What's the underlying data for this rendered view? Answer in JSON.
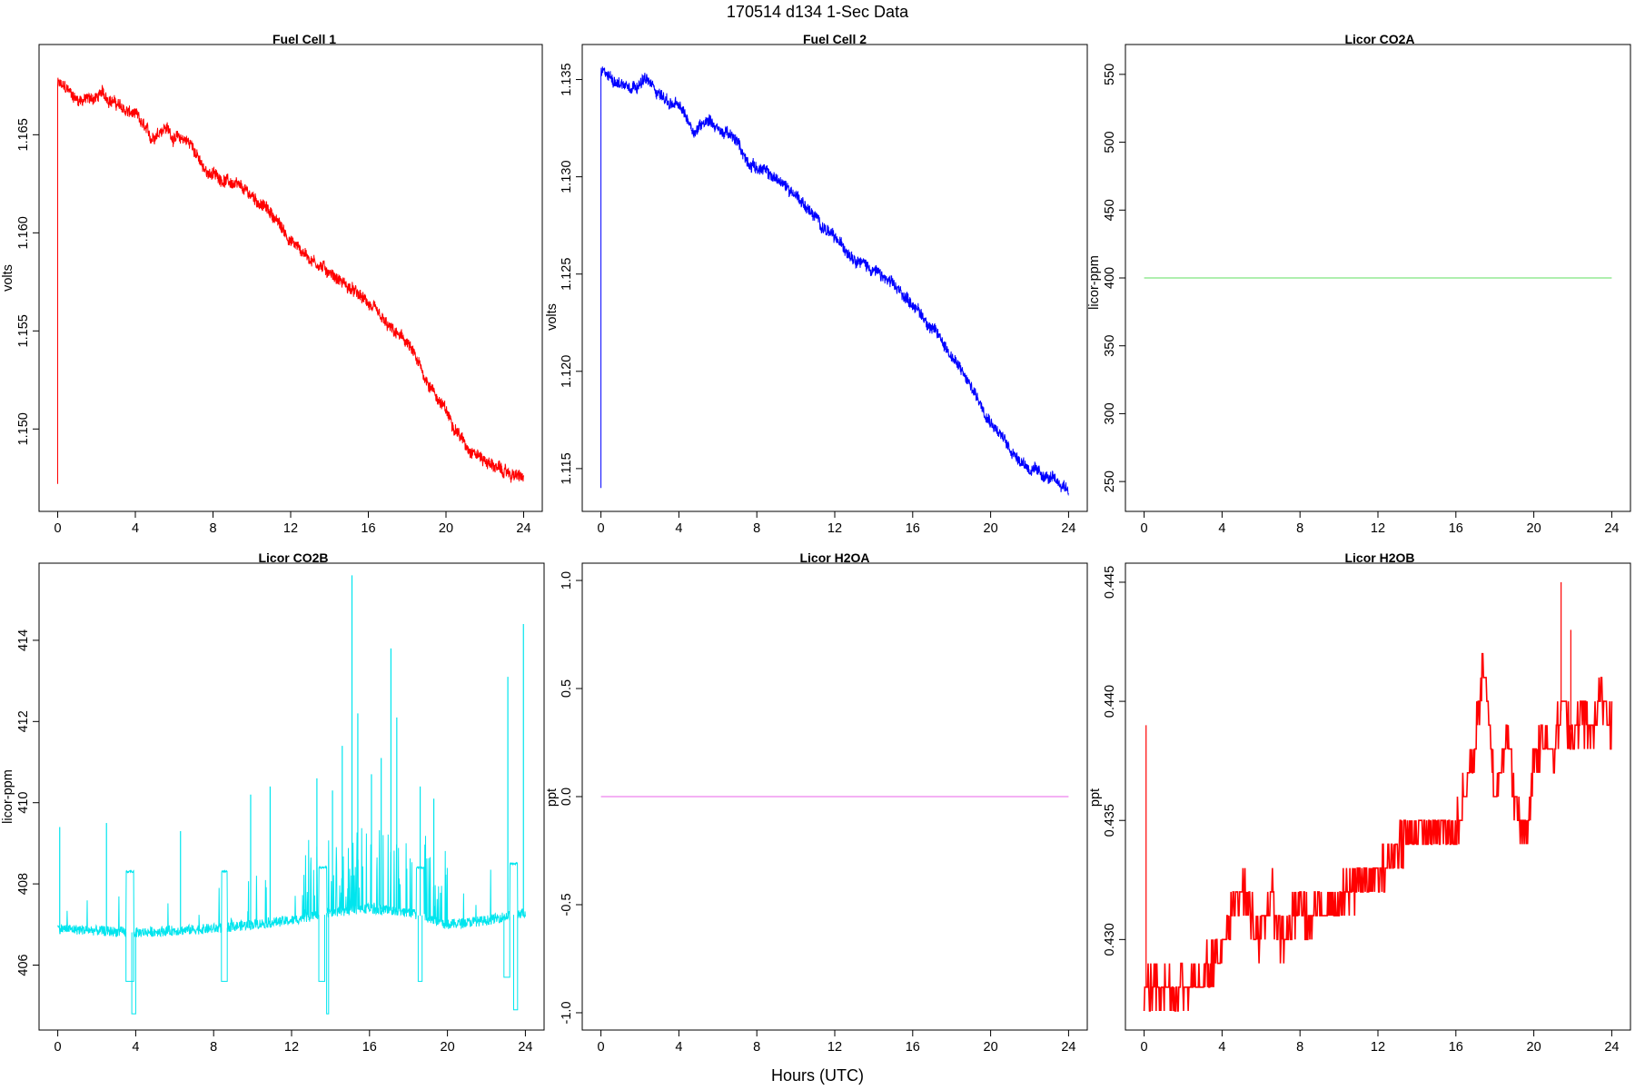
{
  "figure": {
    "title": "170514   d134   1-Sec Data",
    "xlabel": "Hours (UTC)"
  },
  "chart_data": [
    {
      "type": "line",
      "title": "Fuel Cell 1",
      "ylabel": "volts",
      "color": "#ff0000",
      "xlim": [
        -0.96,
        24.96
      ],
      "ylim": [
        1.1458,
        1.1696
      ],
      "xticks": [
        0,
        4,
        8,
        12,
        16,
        20,
        24
      ],
      "yticks": [
        1.15,
        1.155,
        1.16,
        1.165
      ],
      "ytick_labels": [
        "1.150",
        "1.155",
        "1.160",
        "1.165"
      ],
      "noise": 0.00025,
      "spike": [
        0,
        1.1472
      ],
      "x": [
        0,
        0.5,
        1,
        1.5,
        2,
        2.3,
        3,
        3.5,
        4,
        4.5,
        4.8,
        5.3,
        5.6,
        6,
        6.5,
        7,
        7.5,
        8,
        9,
        10,
        11,
        12,
        13,
        14,
        15,
        16,
        17,
        18,
        19,
        20,
        21,
        22,
        23,
        24
      ],
      "y": [
        1.1676,
        1.1673,
        1.1668,
        1.1668,
        1.1669,
        1.1671,
        1.1666,
        1.1662,
        1.166,
        1.1653,
        1.1648,
        1.1653,
        1.1654,
        1.1648,
        1.1648,
        1.1644,
        1.1632,
        1.163,
        1.1625,
        1.1619,
        1.161,
        1.1596,
        1.1587,
        1.158,
        1.1572,
        1.1564,
        1.1552,
        1.1544,
        1.1525,
        1.1509,
        1.1492,
        1.1484,
        1.1478,
        1.1475
      ]
    },
    {
      "type": "line",
      "title": "Fuel Cell 2",
      "ylabel": "volts",
      "color": "#0000ff",
      "xlim": [
        -0.96,
        24.96
      ],
      "ylim": [
        1.1128,
        1.1368
      ],
      "xticks": [
        0,
        4,
        8,
        12,
        16,
        20,
        24
      ],
      "yticks": [
        1.115,
        1.12,
        1.125,
        1.13,
        1.135
      ],
      "ytick_labels": [
        "1.115",
        "1.120",
        "1.125",
        "1.130",
        "1.135"
      ],
      "noise": 0.00025,
      "spike": [
        0,
        1.114
      ],
      "x": [
        0,
        0.5,
        1,
        1.5,
        2,
        2.3,
        3,
        3.5,
        4,
        4.5,
        4.8,
        5.3,
        5.6,
        6,
        6.5,
        7,
        7.5,
        8,
        9,
        10,
        11,
        12,
        13,
        14,
        15,
        16,
        17,
        17.5,
        18,
        19,
        20,
        21,
        22,
        23,
        24
      ],
      "y": [
        1.1354,
        1.1351,
        1.1348,
        1.1347,
        1.1348,
        1.135,
        1.1343,
        1.1338,
        1.1336,
        1.1329,
        1.1323,
        1.1329,
        1.133,
        1.1324,
        1.1322,
        1.1318,
        1.1308,
        1.1305,
        1.1299,
        1.1291,
        1.1279,
        1.1268,
        1.1259,
        1.1252,
        1.1244,
        1.1235,
        1.1222,
        1.1216,
        1.1208,
        1.1192,
        1.1175,
        1.116,
        1.115,
        1.1145,
        1.114
      ]
    },
    {
      "type": "line",
      "title": "Licor CO2A",
      "ylabel": "licor-ppm",
      "color": "#7fe57f",
      "xlim": [
        -0.96,
        24.96
      ],
      "ylim": [
        228,
        572
      ],
      "xticks": [
        0,
        4,
        8,
        12,
        16,
        20,
        24
      ],
      "yticks": [
        250,
        300,
        350,
        400,
        450,
        500,
        550
      ],
      "ytick_labels": [
        "250",
        "300",
        "350",
        "400",
        "450",
        "500",
        "550"
      ],
      "x": [
        0,
        24
      ],
      "y": [
        400,
        400
      ]
    },
    {
      "type": "line",
      "title": "Licor CO2B",
      "ylabel": "licor-ppm",
      "color": "#00e5ee",
      "xlim": [
        -0.96,
        24.96
      ],
      "ylim": [
        404.4,
        415.9
      ],
      "xticks": [
        0,
        4,
        8,
        12,
        16,
        20,
        24
      ],
      "yticks": [
        406,
        408,
        410,
        412,
        414
      ],
      "ytick_labels": [
        "406",
        "408",
        "410",
        "412",
        "414"
      ],
      "baseline": [
        [
          0,
          406.9
        ],
        [
          4,
          406.8
        ],
        [
          8,
          406.9
        ],
        [
          12,
          407.1
        ],
        [
          14,
          407.3
        ],
        [
          16,
          407.4
        ],
        [
          18,
          407.3
        ],
        [
          20,
          407.0
        ],
        [
          22,
          407.1
        ],
        [
          24,
          407.3
        ]
      ],
      "spikes": [
        [
          0.1,
          409.4
        ],
        [
          2.5,
          409.5
        ],
        [
          6.3,
          409.3
        ],
        [
          9.9,
          410.2
        ],
        [
          10.9,
          410.4
        ],
        [
          13.3,
          410.6
        ],
        [
          14.1,
          410.3
        ],
        [
          14.6,
          411.4
        ],
        [
          15.1,
          415.6
        ],
        [
          15.4,
          412.2
        ],
        [
          16.1,
          410.7
        ],
        [
          16.6,
          411.1
        ],
        [
          17.1,
          413.8
        ],
        [
          17.4,
          412.1
        ],
        [
          18.6,
          410.4
        ],
        [
          19.3,
          410.1
        ],
        [
          23.1,
          413.1
        ],
        [
          23.9,
          414.4
        ]
      ],
      "dips": [
        [
          3.5,
          3.9,
          405.6
        ],
        [
          3.8,
          4.0,
          404.8
        ],
        [
          8.4,
          8.7,
          405.6
        ],
        [
          13.4,
          13.7,
          405.6
        ],
        [
          13.8,
          13.9,
          404.8
        ],
        [
          18.5,
          18.7,
          405.6
        ],
        [
          22.9,
          23.2,
          405.7
        ],
        [
          23.4,
          23.6,
          404.9
        ]
      ],
      "plateaus": [
        [
          3.5,
          3.9,
          408.3
        ],
        [
          8.4,
          8.7,
          408.3
        ],
        [
          13.4,
          13.8,
          408.4
        ],
        [
          18.4,
          18.8,
          408.4
        ],
        [
          23.2,
          23.6,
          408.5
        ]
      ]
    },
    {
      "type": "line",
      "title": "Licor H2OA",
      "ylabel": "ppt",
      "color": "#ee82ee",
      "xlim": [
        -0.96,
        24.96
      ],
      "ylim": [
        -1.08,
        1.08
      ],
      "xticks": [
        0,
        4,
        8,
        12,
        16,
        20,
        24
      ],
      "yticks": [
        -1.0,
        -0.5,
        0.0,
        0.5,
        1.0
      ],
      "ytick_labels": [
        "-1.0",
        "-0.5",
        "0.0",
        "0.5",
        "1.0"
      ],
      "x": [
        0,
        24
      ],
      "y": [
        0,
        0
      ]
    },
    {
      "type": "line",
      "title": "Licor H2OB",
      "ylabel": "ppt",
      "color": "#ff0000",
      "xlim": [
        -0.96,
        24.96
      ],
      "ylim": [
        0.4262,
        0.4458
      ],
      "xticks": [
        0,
        4,
        8,
        12,
        16,
        20,
        24
      ],
      "yticks": [
        0.43,
        0.435,
        0.44,
        0.445
      ],
      "ytick_labels": [
        "0.430",
        "0.435",
        "0.440",
        "0.445"
      ],
      "step": 0.001,
      "spikes": [
        [
          0.1,
          0.439
        ],
        [
          21.4,
          0.445
        ],
        [
          21.9,
          0.443
        ],
        [
          1.4,
          0.427
        ]
      ],
      "levels": [
        [
          0,
          0.428
        ],
        [
          1,
          0.428
        ],
        [
          2,
          0.428
        ],
        [
          3,
          0.4285
        ],
        [
          4,
          0.4295
        ],
        [
          5,
          0.4325
        ],
        [
          5.5,
          0.431
        ],
        [
          6,
          0.43
        ],
        [
          6.5,
          0.432
        ],
        [
          7,
          0.43
        ],
        [
          7.5,
          0.4305
        ],
        [
          8,
          0.4315
        ],
        [
          8.5,
          0.4305
        ],
        [
          9,
          0.4315
        ],
        [
          10,
          0.4315
        ],
        [
          11,
          0.4325
        ],
        [
          12,
          0.4325
        ],
        [
          13,
          0.434
        ],
        [
          14,
          0.4345
        ],
        [
          15,
          0.4345
        ],
        [
          16,
          0.4345
        ],
        [
          17,
          0.438
        ],
        [
          17.4,
          0.442
        ],
        [
          18,
          0.436
        ],
        [
          18.6,
          0.439
        ],
        [
          19,
          0.436
        ],
        [
          19.6,
          0.434
        ],
        [
          20,
          0.4375
        ],
        [
          20.5,
          0.4385
        ],
        [
          21,
          0.438
        ],
        [
          21.5,
          0.44
        ],
        [
          22,
          0.4385
        ],
        [
          22.5,
          0.4395
        ],
        [
          23,
          0.4385
        ],
        [
          23.5,
          0.4405
        ],
        [
          24,
          0.439
        ]
      ]
    }
  ]
}
